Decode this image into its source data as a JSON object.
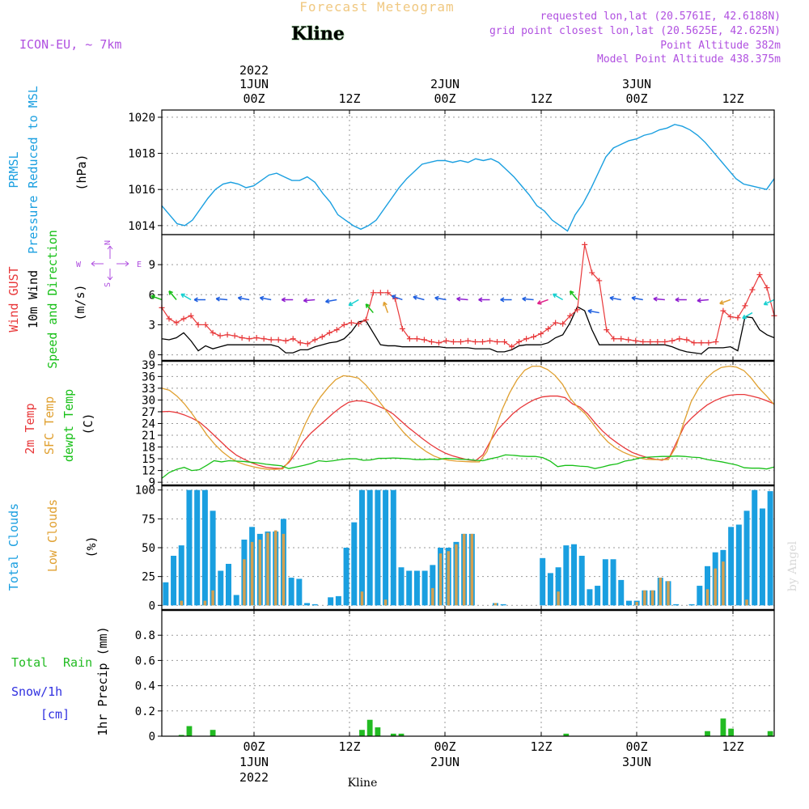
{
  "header": {
    "title": "Forecast Meteogram",
    "station": "Kline",
    "model": "ICON-EU, ~ 7km",
    "requested": "requested lon,lat (20.5761E, 42.6188N)",
    "grid_point": "grid point closest lon,lat (20.5625E, 42.625N)",
    "point_alt": "Point Altitude 382m",
    "model_alt": "Model Point Altitude 438.375m",
    "footer_station": "Kline",
    "watermark": "by Angel"
  },
  "time_axis": {
    "year": "2022",
    "labels": [
      "00Z",
      "12Z",
      "00Z",
      "12Z",
      "00Z",
      "12Z"
    ],
    "days": [
      "1JUN",
      "2JUN",
      "3JUN"
    ],
    "start": "2022-05-31T15:00Z",
    "end": "2022-06-03T16:00Z"
  },
  "compass": {
    "n": "N",
    "s": "S",
    "w": "W",
    "e": "E"
  },
  "colors": {
    "pressure": "#1a9fe0",
    "gust": "#e8383a",
    "wind": "#000000",
    "wind_dir": "#18c018",
    "temp": "#e8383a",
    "sfc": "#e0a030",
    "dewpt": "#18c018",
    "total_clouds": "#1a9fe0",
    "low_clouds": "#d4a050",
    "rain": "#22bb22",
    "snow": "#3030e0",
    "compass": "#b050e0"
  },
  "chart_data": [
    {
      "type": "line",
      "name": "pressure",
      "ylabel": [
        "PRMSL",
        "Pressure Reduced to MSL",
        "(hPa)"
      ],
      "ylim": [
        1013.5,
        1020.4
      ],
      "yticks": [
        1014,
        1016,
        1018,
        1020
      ],
      "series": [
        {
          "name": "PRMSL",
          "values": [
            1015.1,
            1014.6,
            1014.1,
            1014.0,
            1014.3,
            1014.9,
            1015.5,
            1016.0,
            1016.3,
            1016.4,
            1016.3,
            1016.1,
            1016.2,
            1016.5,
            1016.8,
            1016.9,
            1016.7,
            1016.5,
            1016.5,
            1016.7,
            1016.4,
            1015.8,
            1015.3,
            1014.6,
            1014.3,
            1014.0,
            1013.8,
            1014.0,
            1014.3,
            1014.9,
            1015.5,
            1016.1,
            1016.6,
            1017.0,
            1017.4,
            1017.5,
            1017.6,
            1017.6,
            1017.5,
            1017.6,
            1017.5,
            1017.7,
            1017.6,
            1017.7,
            1017.5,
            1017.1,
            1016.7,
            1016.2,
            1015.7,
            1015.1,
            1014.8,
            1014.3,
            1014.0,
            1013.7,
            1014.6,
            1015.2,
            1016.0,
            1016.9,
            1017.8,
            1018.3,
            1018.5,
            1018.7,
            1018.8,
            1019.0,
            1019.1,
            1019.3,
            1019.4,
            1019.6,
            1019.5,
            1019.3,
            1019.0,
            1018.6,
            1018.1,
            1017.6,
            1017.1,
            1016.6,
            1016.3,
            1016.2,
            1016.1,
            1016.0,
            1016.6
          ]
        }
      ]
    },
    {
      "type": "line",
      "name": "wind",
      "ylabel": [
        "Wind GUST",
        "10m Wind",
        "Speed and Direction",
        "(m/s)"
      ],
      "ylim": [
        -0.6,
        12
      ],
      "yticks": [
        0,
        3,
        6,
        9
      ],
      "series": [
        {
          "name": "Wind GUST",
          "values": [
            4.7,
            3.6,
            3.2,
            3.6,
            3.9,
            3.0,
            3.0,
            2.2,
            1.9,
            2.0,
            1.9,
            1.7,
            1.6,
            1.7,
            1.6,
            1.5,
            1.5,
            1.4,
            1.6,
            1.2,
            1.1,
            1.5,
            1.8,
            2.2,
            2.5,
            3.0,
            3.2,
            3.1,
            3.5,
            6.2,
            6.2,
            6.2,
            5.6,
            2.6,
            1.6,
            1.6,
            1.5,
            1.3,
            1.2,
            1.4,
            1.3,
            1.3,
            1.4,
            1.3,
            1.3,
            1.4,
            1.3,
            1.3,
            0.8,
            1.3,
            1.6,
            1.8,
            2.1,
            2.6,
            3.2,
            3.1,
            3.9,
            4.5,
            11.0,
            8.2,
            7.4,
            2.5,
            1.6,
            1.6,
            1.5,
            1.4,
            1.3,
            1.3,
            1.3,
            1.3,
            1.4,
            1.6,
            1.5,
            1.2,
            1.2,
            1.2,
            1.3,
            4.4,
            3.8,
            3.7,
            4.9,
            6.5,
            8.0,
            6.7,
            3.9
          ]
        },
        {
          "name": "10m Wind",
          "values": [
            1.6,
            1.5,
            1.7,
            2.2,
            1.4,
            0.4,
            0.9,
            0.6,
            0.8,
            1.0,
            1.0,
            1.0,
            1.0,
            1.0,
            1.0,
            1.0,
            0.8,
            0.2,
            0.2,
            0.5,
            0.5,
            0.8,
            1.0,
            1.2,
            1.3,
            1.6,
            2.3,
            3.3,
            3.4,
            2.2,
            1.0,
            0.9,
            0.9,
            0.8,
            0.8,
            0.8,
            0.8,
            0.8,
            0.8,
            0.7,
            0.7,
            0.7,
            0.7,
            0.6,
            0.6,
            0.6,
            0.3,
            0.3,
            0.5,
            0.9,
            1.0,
            1.0,
            1.0,
            1.2,
            1.7,
            2.0,
            3.2,
            4.8,
            4.4,
            2.5,
            1.0,
            1.0,
            1.0,
            1.0,
            1.0,
            1.0,
            1.0,
            1.0,
            1.0,
            1.0,
            0.8,
            0.5,
            0.3,
            0.2,
            0.1,
            0.7,
            0.7,
            0.7,
            0.8,
            0.4,
            3.8,
            3.7,
            2.5,
            2.0,
            1.7
          ]
        }
      ],
      "wind_arrows": [
        {
          "i": 0,
          "c": "#18c018",
          "a": 200
        },
        {
          "i": 2,
          "c": "#18c018",
          "a": 230
        },
        {
          "i": 4,
          "c": "#18d0d0",
          "a": 210
        },
        {
          "i": 6,
          "c": "#2060e0",
          "a": 180
        },
        {
          "i": 9,
          "c": "#2060e0",
          "a": 185
        },
        {
          "i": 12,
          "c": "#2060e0",
          "a": 190
        },
        {
          "i": 15,
          "c": "#2060e0",
          "a": 190
        },
        {
          "i": 18,
          "c": "#9020d0",
          "a": 180
        },
        {
          "i": 21,
          "c": "#9020d0",
          "a": 175
        },
        {
          "i": 24,
          "c": "#2060e0",
          "a": 170
        },
        {
          "i": 27,
          "c": "#18d0d0",
          "a": 150
        },
        {
          "i": 29,
          "c": "#18c018",
          "a": 230
        },
        {
          "i": 31,
          "c": "#e0a030",
          "a": 250
        },
        {
          "i": 33,
          "c": "#2060e0",
          "a": 200
        },
        {
          "i": 36,
          "c": "#2060e0",
          "a": 195
        },
        {
          "i": 39,
          "c": "#2060e0",
          "a": 190
        },
        {
          "i": 42,
          "c": "#9020d0",
          "a": 185
        },
        {
          "i": 45,
          "c": "#9020d0",
          "a": 180
        },
        {
          "i": 48,
          "c": "#2060e0",
          "a": 180
        },
        {
          "i": 51,
          "c": "#2060e0",
          "a": 185
        },
        {
          "i": 53,
          "c": "#e0208a",
          "a": 160
        },
        {
          "i": 55,
          "c": "#18d0d0",
          "a": 210
        },
        {
          "i": 57,
          "c": "#18c018",
          "a": 230
        },
        {
          "i": 60,
          "c": "#2060e0",
          "a": 190
        },
        {
          "i": 63,
          "c": "#2060e0",
          "a": 190
        },
        {
          "i": 66,
          "c": "#2060e0",
          "a": 190
        },
        {
          "i": 69,
          "c": "#9020d0",
          "a": 185
        },
        {
          "i": 72,
          "c": "#9020d0",
          "a": 180
        },
        {
          "i": 75,
          "c": "#9020d0",
          "a": 175
        },
        {
          "i": 78,
          "c": "#e0a030",
          "a": 160
        },
        {
          "i": 81,
          "c": "#18d0d0",
          "a": 150
        },
        {
          "i": 84,
          "c": "#18d0d0",
          "a": 155
        }
      ]
    },
    {
      "type": "line",
      "name": "temperature",
      "ylabel": [
        "2m Temp",
        "SFC Temp",
        "dewpt Temp",
        "(C)"
      ],
      "ylim": [
        8.2,
        40
      ],
      "yticks": [
        9,
        12,
        15,
        18,
        21,
        24,
        27,
        30,
        33,
        36,
        39
      ],
      "series": [
        {
          "name": "2m Temp",
          "values": [
            27.0,
            27.1,
            26.8,
            26.2,
            25.4,
            24.4,
            22.8,
            21.0,
            19.2,
            17.4,
            15.9,
            14.9,
            14.0,
            13.3,
            12.8,
            12.6,
            12.5,
            14.0,
            16.5,
            19.5,
            21.6,
            23.3,
            25.0,
            26.7,
            28.2,
            29.4,
            29.8,
            29.7,
            29.2,
            28.4,
            27.6,
            26.4,
            24.7,
            23.0,
            21.5,
            20.0,
            18.6,
            17.4,
            16.4,
            15.7,
            15.2,
            14.7,
            14.5,
            16.0,
            19.5,
            22.5,
            24.5,
            26.5,
            28.0,
            29.2,
            30.2,
            30.8,
            31.0,
            31.0,
            30.6,
            29.0,
            28.2,
            26.5,
            24.2,
            22.1,
            20.4,
            19.0,
            17.7,
            16.6,
            15.9,
            15.3,
            14.9,
            14.6,
            15.5,
            19.5,
            23.5,
            25.5,
            27.2,
            28.7,
            29.8,
            30.6,
            31.2,
            31.4,
            31.4,
            31.0,
            30.5,
            29.8,
            29.0
          ]
        },
        {
          "name": "SFC Temp",
          "values": [
            33.0,
            32.5,
            31.0,
            29.0,
            26.5,
            23.8,
            21.0,
            18.7,
            16.8,
            15.3,
            14.2,
            13.5,
            13.0,
            12.6,
            12.3,
            12.3,
            12.4,
            14.8,
            19.5,
            24.0,
            27.8,
            30.8,
            33.2,
            35.2,
            36.2,
            36.0,
            35.6,
            33.8,
            31.5,
            29.0,
            26.5,
            24.0,
            21.7,
            19.8,
            18.2,
            16.8,
            15.7,
            15.0,
            14.6,
            14.4,
            14.3,
            14.2,
            14.2,
            16.8,
            22.3,
            27.5,
            31.8,
            35.2,
            37.6,
            38.6,
            38.6,
            37.8,
            36.3,
            34.0,
            30.5,
            28.2,
            26.5,
            24.0,
            21.4,
            19.3,
            17.8,
            16.7,
            15.9,
            15.3,
            14.9,
            14.8,
            14.8,
            14.8,
            18.0,
            24.0,
            29.5,
            33.0,
            35.5,
            37.2,
            38.3,
            38.6,
            38.4,
            37.5,
            35.5,
            33.0,
            31.0,
            28.8
          ]
        },
        {
          "name": "dewpt Temp",
          "values": [
            10.0,
            11.5,
            12.3,
            12.8,
            12.0,
            12.2,
            13.3,
            14.5,
            14.2,
            14.5,
            14.4,
            14.3,
            14.1,
            13.9,
            13.6,
            13.4,
            13.2,
            12.5,
            12.9,
            13.3,
            13.8,
            14.5,
            14.3,
            14.5,
            14.8,
            15.0,
            15.0,
            14.6,
            14.7,
            15.1,
            15.1,
            15.2,
            15.1,
            15.0,
            14.8,
            14.8,
            14.9,
            14.8,
            15.1,
            15.0,
            14.9,
            14.8,
            14.6,
            14.5,
            15.0,
            15.4,
            16.0,
            15.9,
            15.7,
            15.6,
            15.6,
            15.3,
            14.4,
            13.0,
            13.3,
            13.3,
            13.1,
            13.0,
            12.5,
            12.9,
            13.4,
            13.7,
            14.4,
            14.7,
            15.2,
            15.4,
            15.5,
            15.6,
            15.6,
            15.7,
            15.6,
            15.4,
            15.3,
            14.8,
            14.5,
            14.2,
            13.8,
            13.4,
            12.7,
            12.6,
            12.6,
            12.4,
            12.9
          ]
        }
      ]
    },
    {
      "type": "bar",
      "name": "clouds",
      "ylabel": [
        "Total Clouds",
        "Low Clouds",
        "(%)"
      ],
      "ylim": [
        -4,
        104
      ],
      "yticks": [
        0,
        25,
        50,
        75,
        100
      ],
      "series": [
        {
          "name": "Total Clouds",
          "values": [
            20,
            43,
            52,
            100,
            100,
            100,
            82,
            30,
            36,
            9,
            57,
            68,
            62,
            64,
            64,
            75,
            24,
            23,
            2,
            1,
            0,
            7,
            8,
            50,
            72,
            100,
            100,
            100,
            100,
            100,
            33,
            30,
            30,
            30,
            35,
            50,
            50,
            55,
            62,
            62,
            0,
            0,
            2,
            1,
            0,
            0,
            0,
            0,
            41,
            28,
            33,
            52,
            53,
            43,
            14,
            17,
            40,
            40,
            22,
            4,
            4,
            13,
            13,
            24,
            21,
            1,
            0,
            1,
            17,
            34,
            46,
            48,
            68,
            70,
            82,
            100,
            84,
            99
          ]
        },
        {
          "name": "Low Clouds",
          "values": [
            0,
            0,
            4,
            0,
            0,
            4,
            13,
            0,
            0,
            0,
            40,
            55,
            57,
            63,
            65,
            62,
            0,
            0,
            0,
            0,
            0,
            0,
            0,
            0,
            0,
            12,
            0,
            0,
            5,
            0,
            0,
            0,
            0,
            0,
            15,
            45,
            47,
            53,
            62,
            62,
            0,
            0,
            2,
            0,
            0,
            0,
            0,
            0,
            0,
            0,
            12,
            0,
            0,
            0,
            0,
            0,
            0,
            0,
            0,
            0,
            3,
            13,
            13,
            24,
            21,
            0,
            0,
            0,
            0,
            14,
            32,
            38,
            0,
            0,
            5,
            0,
            0,
            0
          ]
        }
      ]
    },
    {
      "type": "bar",
      "name": "precip",
      "ylabel": [
        "1hr Precip (mm)"
      ],
      "ylim": [
        0,
        1.0
      ],
      "yticks": [
        "0",
        "0.2",
        "0.4",
        "0.6",
        "0.8"
      ],
      "legend": [
        "Total",
        "Rain",
        "Snow/1h",
        "[cm]"
      ],
      "series": [
        {
          "name": "Total Rain",
          "values": [
            0,
            0,
            0.01,
            0.08,
            0,
            0,
            0.05,
            0,
            0,
            0,
            0,
            0,
            0,
            0,
            0,
            0,
            0,
            0,
            0,
            0,
            0,
            0,
            0,
            0,
            0,
            0.05,
            0.13,
            0.07,
            0,
            0.02,
            0.02,
            0,
            0,
            0,
            0,
            0,
            0,
            0,
            0,
            0,
            0,
            0,
            0,
            0,
            0,
            0,
            0,
            0,
            0,
            0,
            0,
            0.02,
            0,
            0,
            0,
            0,
            0,
            0,
            0,
            0,
            0,
            0,
            0,
            0,
            0,
            0,
            0,
            0,
            0,
            0.04,
            0,
            0.14,
            0.06,
            0,
            0,
            0,
            0,
            0.04
          ]
        }
      ]
    }
  ]
}
